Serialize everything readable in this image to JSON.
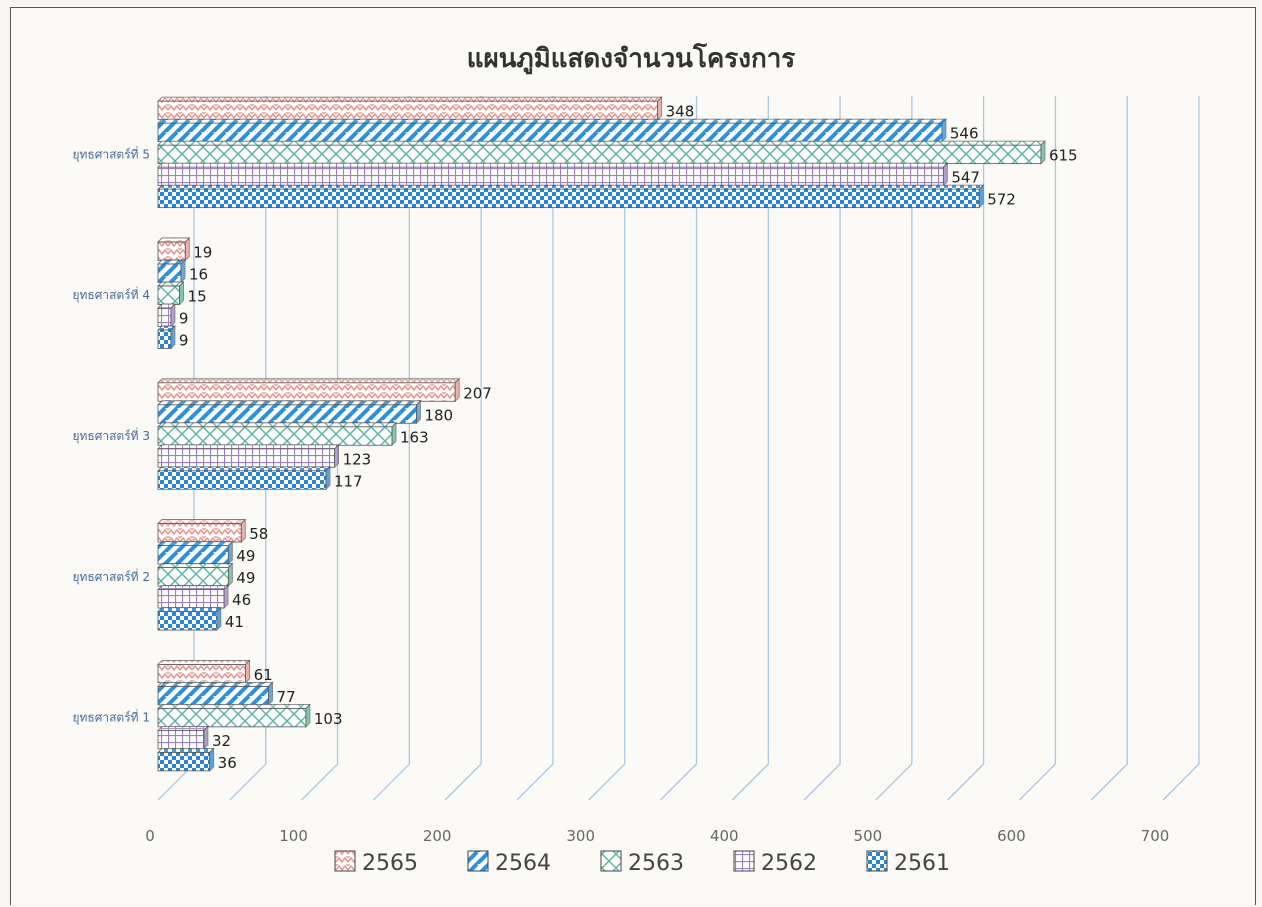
{
  "chart_data": {
    "type": "bar",
    "orientation": "horizontal",
    "title": "แผนภูมิแสดงจำนวนโครงการ",
    "categories": [
      "ยุทธศาสตร์ที่ 1",
      "ยุทธศาสตร์ที่ 2",
      "ยุทธศาสตร์ที่ 3",
      "ยุทธศาสตร์ที่ 4",
      "ยุทธศาสตร์ที่ 5"
    ],
    "series": [
      {
        "name": "2565",
        "values": [
          61,
          58,
          207,
          19,
          348
        ],
        "color": "#e59a93",
        "pattern": "zigzag"
      },
      {
        "name": "2564",
        "values": [
          77,
          49,
          180,
          16,
          546
        ],
        "color": "#2e8fdc",
        "pattern": "wide-diagonal"
      },
      {
        "name": "2563",
        "values": [
          103,
          49,
          163,
          15,
          615
        ],
        "color": "#5bb3a0",
        "pattern": "diagonal-cross"
      },
      {
        "name": "2562",
        "values": [
          32,
          46,
          123,
          9,
          547
        ],
        "color": "#9a7fc2",
        "pattern": "grid"
      },
      {
        "name": "2561",
        "values": [
          36,
          41,
          117,
          9,
          572
        ],
        "color": "#2a86d4",
        "pattern": "checker"
      }
    ],
    "xlim": [
      0,
      700
    ],
    "x_ticks": [
      "0",
      "100",
      "200",
      "300",
      "400",
      "500",
      "600",
      "700"
    ],
    "grid": true,
    "legend_position": "bottom"
  }
}
